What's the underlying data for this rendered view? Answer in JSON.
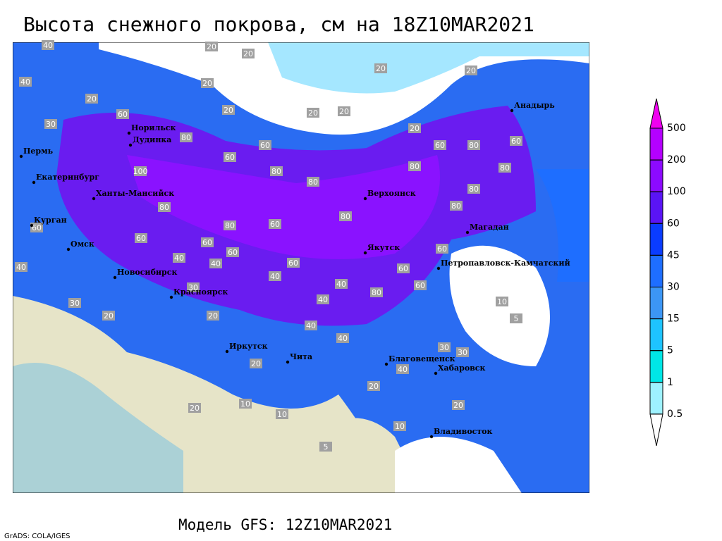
{
  "header": {
    "title": "Высота снежного покрова, см на 18Z10MAR2021",
    "model": "Модель GFS: 12Z10MAR2021",
    "credit": "GrADS: COLA/IGES"
  },
  "colorbar": {
    "levels": [
      0.5,
      1,
      5,
      15,
      30,
      45,
      60,
      100,
      200,
      500
    ],
    "colors": [
      "#ffffff",
      "#9ef2ff",
      "#00e6e6",
      "#1ec3ff",
      "#3c96f5",
      "#1e6eff",
      "#0a3cff",
      "#5a14f5",
      "#8c0aff",
      "#b400ff",
      "#f000f0"
    ]
  },
  "cities": [
    "Анадырь",
    "Норильск",
    "Дудинка",
    "Пермь",
    "Екатеринбург",
    "Ханты-Мансийск",
    "Верхоянск",
    "Курган",
    "Магадан",
    "Омск",
    "Якутск",
    "Петропавловск-Камчатский",
    "Новосибирск",
    "Красноярск",
    "Иркутск",
    "Чита",
    "Благовещенск",
    "Хабаровск",
    "Владивосток"
  ],
  "contour_labels": [
    40,
    20,
    20,
    20,
    20,
    40,
    20,
    20,
    60,
    20,
    20,
    20,
    30,
    20,
    80,
    60,
    60,
    80,
    60,
    100,
    60,
    80,
    80,
    80,
    80,
    80,
    80,
    80,
    60,
    80,
    60,
    60,
    60,
    60,
    80,
    60,
    40,
    40,
    40,
    60,
    40,
    60,
    40,
    60,
    40,
    80,
    30,
    30,
    20,
    20,
    40,
    40,
    30,
    30,
    20,
    40,
    20,
    10,
    10,
    10,
    5,
    20,
    10,
    5,
    20
  ]
}
